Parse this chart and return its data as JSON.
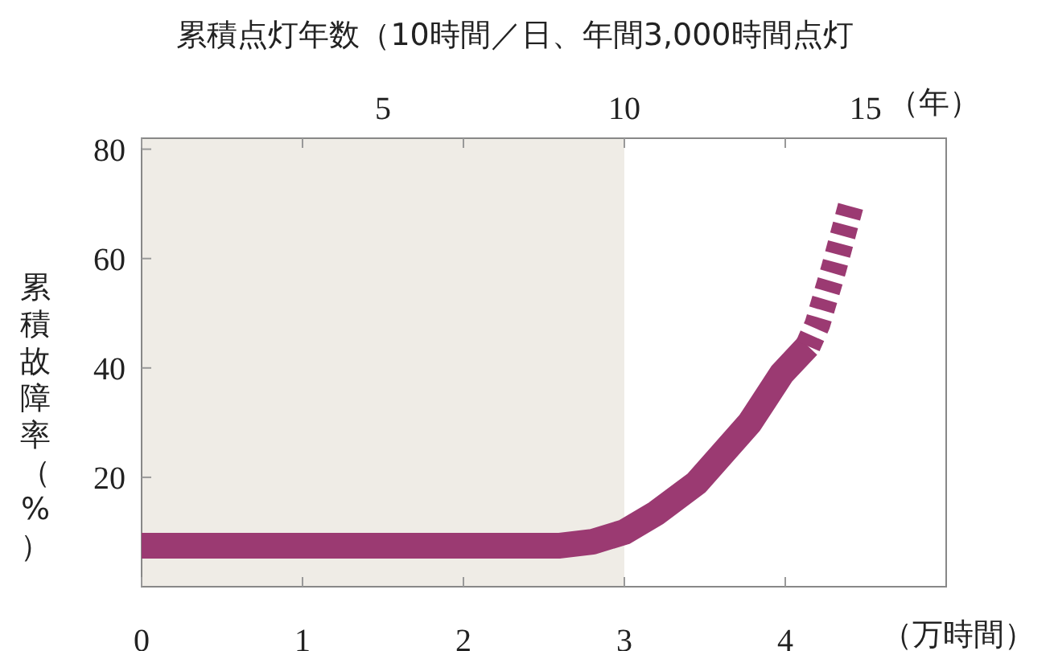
{
  "chart_data": {
    "type": "line",
    "title": "累積点灯年数（10時間／日、年間3,000時間点灯",
    "xlabel": "（万時間）",
    "x2label": "（年）",
    "ylabel": "累積故障率（%）",
    "xlim": [
      0,
      5
    ],
    "xticks": [
      0,
      1,
      2,
      3,
      4
    ],
    "x2lim": [
      0,
      16.67
    ],
    "x2ticks": [
      5,
      10,
      15
    ],
    "ylim": [
      0,
      82
    ],
    "yticks": [
      20,
      40,
      60,
      80
    ],
    "bands": [
      {
        "axis": "x",
        "from": 0,
        "to": 3,
        "color": "#efece6"
      }
    ],
    "series": [
      {
        "color": "#9b3a72",
        "line_style": "solid",
        "x": [
          0,
          2.6,
          2.8,
          3.0,
          3.2,
          3.45,
          3.78,
          3.98,
          4.14
        ],
        "values": [
          7.5,
          7.5,
          8.2,
          10,
          13.5,
          19,
          30,
          39,
          44
        ]
      },
      {
        "color": "#9b3a72",
        "line_style": "dashed",
        "x": [
          4.14,
          4.2,
          4.3,
          4.41
        ],
        "values": [
          44,
          48,
          58,
          70
        ]
      }
    ]
  }
}
